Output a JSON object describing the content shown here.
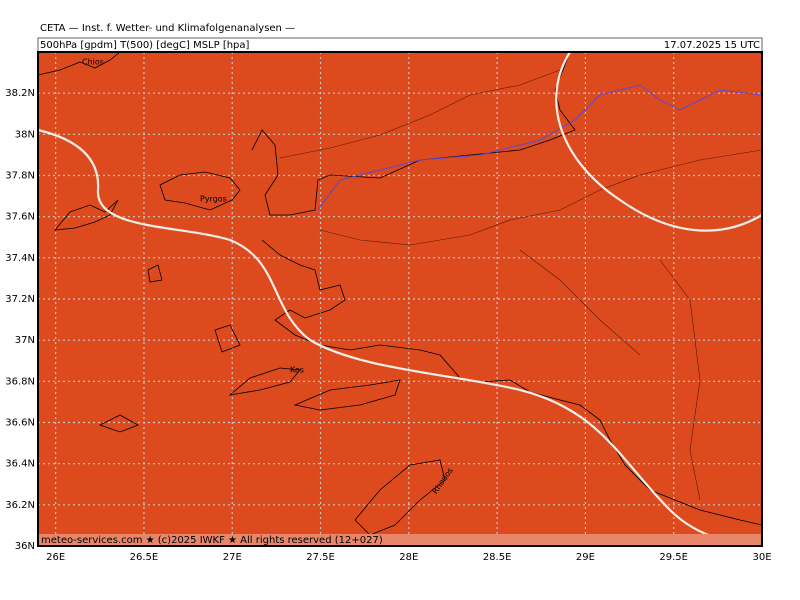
{
  "header": {
    "title": "CETA — Inst. f. Wetter- und Klimafolgenanalysen —",
    "subtitle": "500hPa [gpdm] T(500) [degC] MSLP [hpa]",
    "valid_time": "17.07.2025 15 UTC"
  },
  "map": {
    "xlim": [
      25.9,
      30
    ],
    "ylim": [
      36,
      38.4
    ],
    "xticks": [
      {
        "value": 26,
        "label": "26E"
      },
      {
        "value": 26.5,
        "label": "26.5E"
      },
      {
        "value": 27,
        "label": "27E"
      },
      {
        "value": 27.5,
        "label": "27.5E"
      },
      {
        "value": 28,
        "label": "28E"
      },
      {
        "value": 28.5,
        "label": "28.5E"
      },
      {
        "value": 29,
        "label": "29E"
      },
      {
        "value": 29.5,
        "label": "29.5E"
      },
      {
        "value": 30,
        "label": "30E"
      }
    ],
    "yticks": [
      {
        "value": 36,
        "label": "36N"
      },
      {
        "value": 36.2,
        "label": "36.2N"
      },
      {
        "value": 36.4,
        "label": "36.4N"
      },
      {
        "value": 36.6,
        "label": "36.6N"
      },
      {
        "value": 36.8,
        "label": "36.8N"
      },
      {
        "value": 37,
        "label": "37N"
      },
      {
        "value": 37.2,
        "label": "37.2N"
      },
      {
        "value": 37.4,
        "label": "37.4N"
      },
      {
        "value": 37.6,
        "label": "37.6N"
      },
      {
        "value": 37.8,
        "label": "37.8N"
      },
      {
        "value": 38,
        "label": "38N"
      },
      {
        "value": 38.2,
        "label": "38.2N"
      }
    ],
    "places": [
      "Chios",
      "Pyrgos",
      "Kos",
      "Rhodos"
    ]
  },
  "footer": "meteo-services.com ★ (c)2025 IWKF ★ All rights reserved (12+027)"
}
